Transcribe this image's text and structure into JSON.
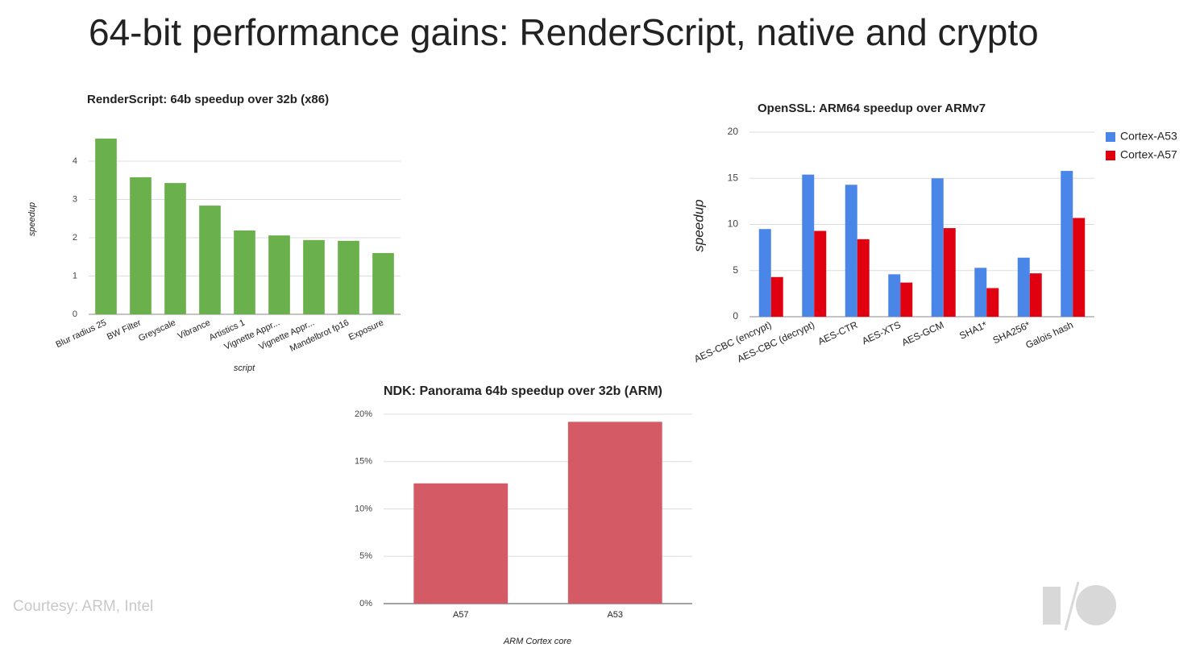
{
  "title": "64-bit performance gains: RenderScript, native and crypto",
  "courtesy": "Courtesy: ARM, Intel",
  "chart_data": [
    {
      "type": "bar",
      "title": "RenderScript: 64b speedup over 32b (x86)",
      "ylabel": "speedup",
      "xlabel": "script",
      "categories": [
        "Blur radius 25",
        "BW Filter",
        "Greyscale",
        "Vibrance",
        "Artistics 1",
        "Vignette Appr...",
        "Vignette Appr...",
        "Mandelbrot fp16",
        "Exposure"
      ],
      "values": [
        4.59,
        3.58,
        3.43,
        2.84,
        2.19,
        2.06,
        1.94,
        1.92,
        1.6
      ],
      "color": "#6ab04c",
      "ylim": [
        0,
        4.6
      ],
      "yticks": [
        0,
        1,
        2,
        3,
        4
      ],
      "grid": true
    },
    {
      "type": "grouped-bar",
      "title": "OpenSSL: ARM64 speedup over ARMv7",
      "ylabel": "speedup",
      "categories": [
        "AES-CBC (encrypt)",
        "AES-CBC (decrypt)",
        "AES-CTR",
        "AES-XTS",
        "AES-GCM",
        "SHA1*",
        "SHA256*",
        "Galois hash"
      ],
      "series": [
        {
          "name": "Cortex-A53",
          "color": "#4a86e8",
          "values": [
            9.5,
            15.4,
            14.3,
            4.6,
            15.0,
            5.3,
            6.4,
            15.8
          ]
        },
        {
          "name": "Cortex-A57",
          "color": "#e00010",
          "values": [
            4.3,
            9.3,
            8.4,
            3.7,
            9.6,
            3.1,
            4.7,
            10.7
          ]
        }
      ],
      "ylim": [
        0,
        20
      ],
      "yticks": [
        0,
        5,
        10,
        15,
        20
      ],
      "grid": true,
      "legend": "right"
    },
    {
      "type": "bar",
      "title": "NDK: Panorama 64b speedup over 32b (ARM)",
      "xlabel": "ARM Cortex core",
      "categories": [
        "A57",
        "A53"
      ],
      "values": [
        12.7,
        19.2
      ],
      "color": "#d45a66",
      "ylim": [
        0,
        20
      ],
      "yticks": [
        {
          "value": 0,
          "label": "0%"
        },
        {
          "value": 5,
          "label": "5%"
        },
        {
          "value": 10,
          "label": "10%"
        },
        {
          "value": 15,
          "label": "15%"
        },
        {
          "value": 20,
          "label": "20%"
        }
      ],
      "grid": true
    }
  ]
}
